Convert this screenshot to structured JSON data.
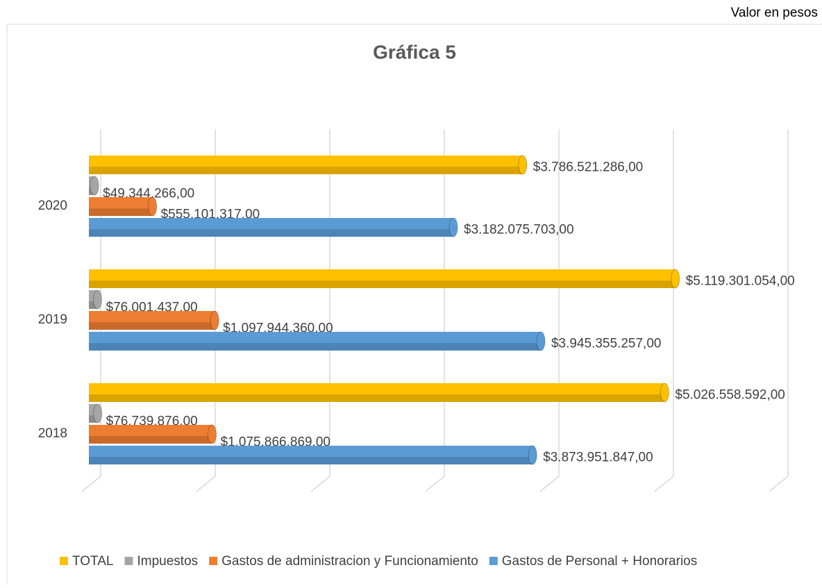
{
  "chart_data": {
    "type": "bar",
    "orientation": "horizontal",
    "title": "Gráfica 5",
    "subtitle": "Valor en pesos",
    "categories": [
      "2018",
      "2019",
      "2020"
    ],
    "series": [
      {
        "name": "TOTAL",
        "color": "#ffc000",
        "values": [
          5026558592,
          5119301054,
          3786521286
        ],
        "value_labels": [
          "$5.026.558.592,00",
          "$5.119.301.054,00",
          "$3.786.521.286,00"
        ]
      },
      {
        "name": "Impuestos",
        "color": "#a5a5a5",
        "values": [
          76739876,
          76001437,
          49344266
        ],
        "value_labels": [
          "$76.739.876,00",
          "$76.001.437,00",
          "$49.344.266,00"
        ]
      },
      {
        "name": "Gastos de administracion y Funcionamiento",
        "color": "#ed7d31",
        "values": [
          1075866869,
          1097944360,
          555101317
        ],
        "value_labels": [
          "$1.075.866.869,00",
          "$1.097.944.360,00",
          "$555.101.317,00"
        ]
      },
      {
        "name": "Gastos de Personal + Honorarios",
        "color": "#5b9bd5",
        "values": [
          3873951847,
          3945355257,
          3182075703
        ],
        "value_labels": [
          "$3.873.951.847,00",
          "$3.945.355.257,00",
          "$3.182.075.703,00"
        ]
      }
    ],
    "xlim": [
      0,
      6000000000
    ],
    "xticks": [
      0,
      1000000000,
      2000000000,
      3000000000,
      4000000000,
      5000000000,
      6000000000
    ],
    "grid": true,
    "legend": "bottom"
  }
}
